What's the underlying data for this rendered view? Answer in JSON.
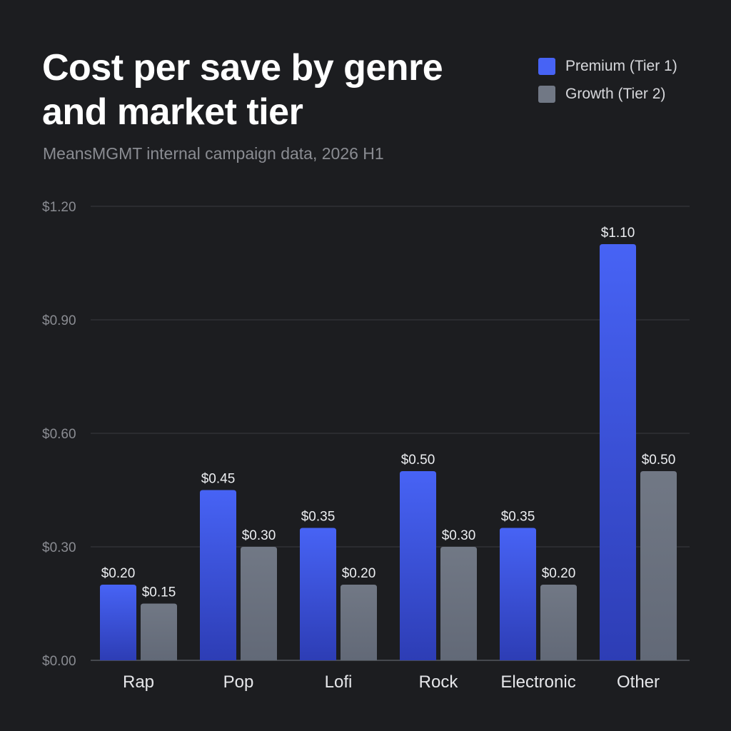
{
  "header": {
    "title": "Cost per save by genre and market tier",
    "subtitle": "MeansMGMT internal campaign data, 2026 H1"
  },
  "colors": {
    "background": "#1c1d20",
    "gridline": "#3a3c41",
    "tick_label": "#8a8c92",
    "category_label": "#e6e7ea",
    "value_label": "#eceef1"
  },
  "chart_data": {
    "type": "bar",
    "title": "Cost per save by genre and market tier",
    "subtitle": "MeansMGMT internal campaign data, 2026 H1",
    "xlabel": "",
    "ylabel": "",
    "categories": [
      "Rap",
      "Pop",
      "Lofi",
      "Rock",
      "Electronic",
      "Other"
    ],
    "series": [
      {
        "name": "Premium (Tier 1)",
        "color": "#4763f5",
        "color_bottom": "#2d3db5",
        "values": [
          0.2,
          0.45,
          0.35,
          0.5,
          0.35,
          1.1
        ],
        "value_labels": [
          "$0.20",
          "$0.45",
          "$0.35",
          "$0.50",
          "$0.35",
          "$1.10"
        ]
      },
      {
        "name": "Growth (Tier 2)",
        "color": "#717885",
        "color_bottom": "#626977",
        "values": [
          0.15,
          0.3,
          0.2,
          0.3,
          0.2,
          0.5
        ],
        "value_labels": [
          "$0.15",
          "$0.30",
          "$0.20",
          "$0.30",
          "$0.20",
          "$0.50"
        ]
      }
    ],
    "ylim": [
      0,
      1.2
    ],
    "yticks": [
      0,
      0.3,
      0.6,
      0.9,
      1.2
    ],
    "ytick_labels": [
      "$0.00",
      "$0.30",
      "$0.60",
      "$0.90",
      "$1.20"
    ],
    "grid": true,
    "legend_position": "top-right"
  }
}
